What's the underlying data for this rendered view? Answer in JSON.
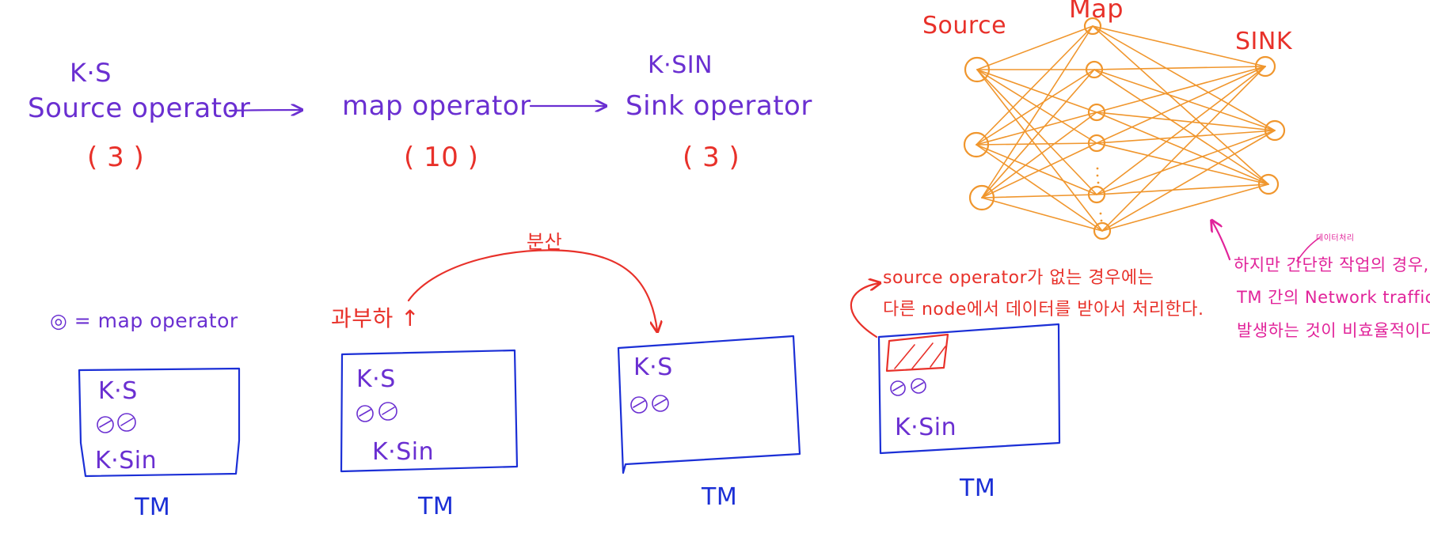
{
  "pipeline": {
    "source": {
      "short": "K·S",
      "label": "Source operator",
      "parallelism": "( 3 )"
    },
    "map": {
      "label": "map operator",
      "parallelism": "( 10 )"
    },
    "sink": {
      "short": "K·SIN",
      "label": "Sink operator",
      "parallelism": "( 3 )"
    }
  },
  "graph": {
    "source_label": "Source",
    "map_label": "Map",
    "sink_label": "SINK"
  },
  "legend": {
    "text": "◎ = map operator"
  },
  "tm_boxes": [
    {
      "source_text": "K·S",
      "sink_text": "K·Sin",
      "label": "TM"
    },
    {
      "source_text": "K·S",
      "sink_text": "K·Sin",
      "label": "TM"
    },
    {
      "source_text": "K·S",
      "sink_text": "",
      "label": "TM"
    },
    {
      "source_text": "",
      "sink_text": "K·Sin",
      "label": "TM"
    }
  ],
  "annotations": {
    "overload": "과부하 ↑",
    "distribute": "분산",
    "source_note_1": "source operator가 없는 경우에는",
    "source_note_2": "다른 node에서 데이터를 받아서 처리한다.",
    "simple_task_small": "데이터처리",
    "simple_task_1": "하지만 간단한 작업의 경우,",
    "simple_task_2": "TM 간의 Network traffic이",
    "simple_task_3": "발생하는 것이 비효율적이다."
  },
  "colors": {
    "purple": "#6a2fd1",
    "red": "#e8312a",
    "orange": "#f0962d",
    "blue": "#1b2fd6",
    "pink": "#e1239a"
  }
}
